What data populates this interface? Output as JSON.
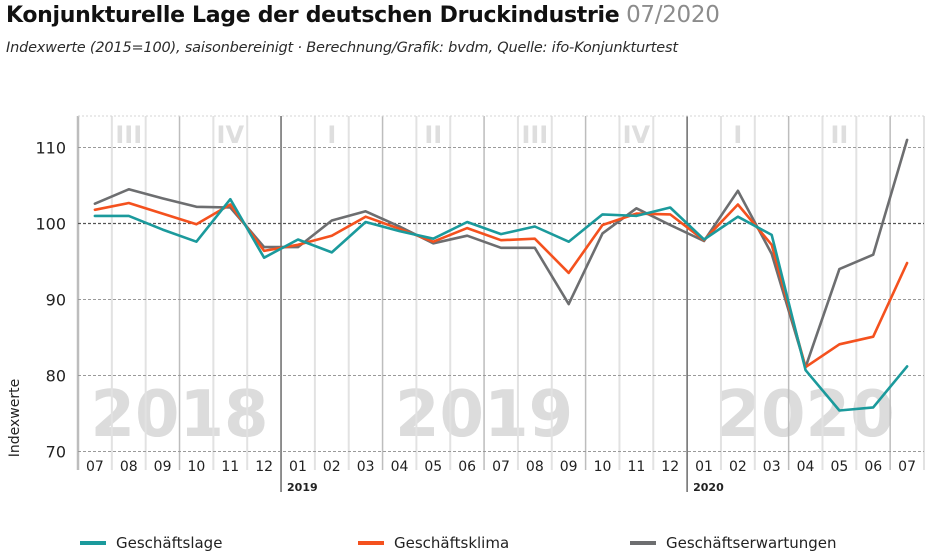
{
  "header": {
    "title": "Konjunkturelle Lage der deutschen Druckindustrie",
    "date": "07/2020",
    "subtitle": "Indexwerte (2015=100), saisonbereinigt · Berechnung/Grafik: bvdm, Quelle: ifo-Konjunkturtest"
  },
  "chart_data": {
    "type": "line",
    "title": "Konjunkturelle Lage der deutschen Druckindustrie",
    "ylabel": "Indexwerte",
    "xlabel": "",
    "ylim": [
      70,
      115
    ],
    "yticks": [
      70,
      80,
      90,
      100,
      110
    ],
    "grid": true,
    "legend_position": "bottom",
    "x": [
      "07",
      "08",
      "09",
      "10",
      "11",
      "12",
      "01",
      "02",
      "03",
      "04",
      "05",
      "06",
      "07",
      "08",
      "09",
      "10",
      "11",
      "12",
      "01",
      "02",
      "03",
      "04",
      "05",
      "06",
      "07"
    ],
    "year_markers": [
      {
        "label": "2019",
        "index": 6
      },
      {
        "label": "2020",
        "index": 18
      }
    ],
    "quarters": [
      {
        "label": "III",
        "start": 0,
        "end": 2
      },
      {
        "label": "IV",
        "start": 3,
        "end": 5
      },
      {
        "label": "I",
        "start": 6,
        "end": 8
      },
      {
        "label": "II",
        "start": 9,
        "end": 11
      },
      {
        "label": "III",
        "start": 12,
        "end": 14
      },
      {
        "label": "IV",
        "start": 15,
        "end": 17
      },
      {
        "label": "I",
        "start": 18,
        "end": 20
      },
      {
        "label": "II",
        "start": 21,
        "end": 23
      }
    ],
    "year_watermarks": [
      {
        "label": "2018",
        "start": 0,
        "end": 5
      },
      {
        "label": "2019",
        "start": 6,
        "end": 17
      },
      {
        "label": "2020",
        "start": 18,
        "end": 24
      }
    ],
    "series": [
      {
        "name": "Geschäftslage",
        "color": "#1b9a9c",
        "values": [
          101.0,
          101.0,
          99.2,
          97.6,
          103.2,
          95.5,
          97.9,
          96.2,
          100.2,
          99.0,
          98.0,
          100.2,
          98.6,
          99.6,
          97.6,
          101.2,
          101.0,
          102.1,
          97.9,
          100.9,
          98.5,
          80.7,
          75.4,
          75.8,
          81.2
        ]
      },
      {
        "name": "Geschäftsklima",
        "color": "#f4511e",
        "values": [
          101.8,
          102.7,
          101.3,
          99.9,
          102.5,
          96.4,
          97.2,
          98.4,
          100.9,
          99.3,
          97.6,
          99.4,
          97.8,
          98.0,
          93.5,
          99.8,
          101.3,
          101.2,
          97.8,
          102.5,
          97.2,
          81.1,
          84.1,
          85.1,
          94.8
        ]
      },
      {
        "name": "Geschäftserwartungen",
        "color": "#6d6e70",
        "values": [
          102.6,
          104.5,
          103.3,
          102.2,
          102.1,
          96.9,
          96.9,
          100.4,
          101.6,
          99.6,
          97.4,
          98.4,
          96.8,
          96.8,
          89.4,
          98.7,
          102.0,
          99.8,
          97.7,
          104.3,
          96.0,
          81.1,
          94.0,
          95.9,
          111.0
        ]
      }
    ]
  }
}
